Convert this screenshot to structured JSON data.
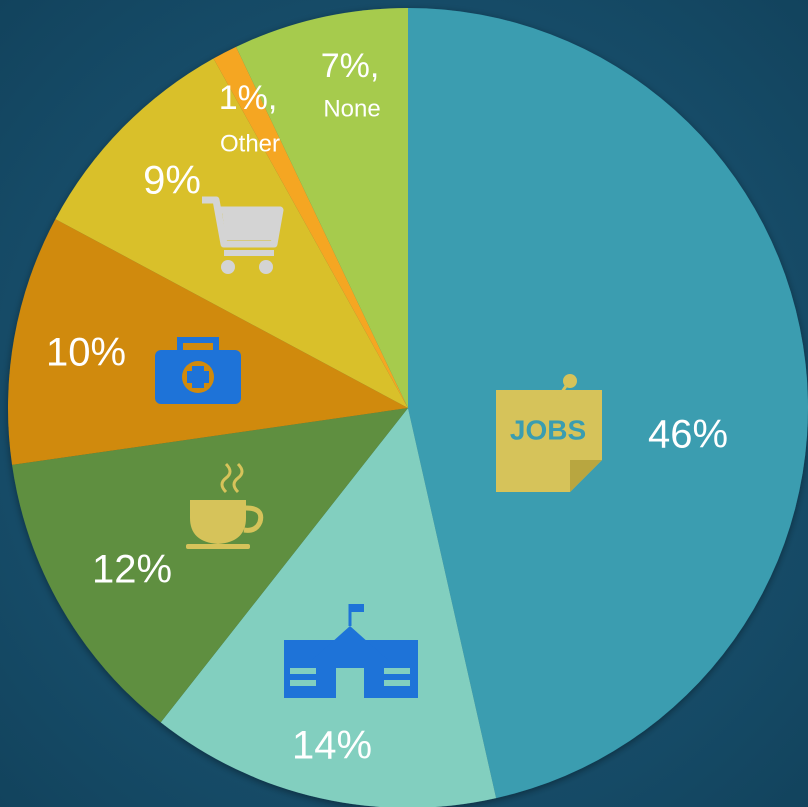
{
  "chart_data": {
    "type": "pie",
    "categories": [
      null,
      null,
      null,
      null,
      null,
      "Other",
      "None"
    ],
    "values": [
      46,
      14,
      12,
      10,
      9,
      1,
      7
    ],
    "value_labels": [
      "46%",
      "14%",
      "12%",
      "10%",
      "9%",
      "1%,",
      "7%,"
    ],
    "colors": [
      "#3a9db0",
      "#82cfbf",
      "#5f8f3f",
      "#d08a0c",
      "#d9c02a",
      "#f5a623",
      "#a6cb4e"
    ]
  }
}
